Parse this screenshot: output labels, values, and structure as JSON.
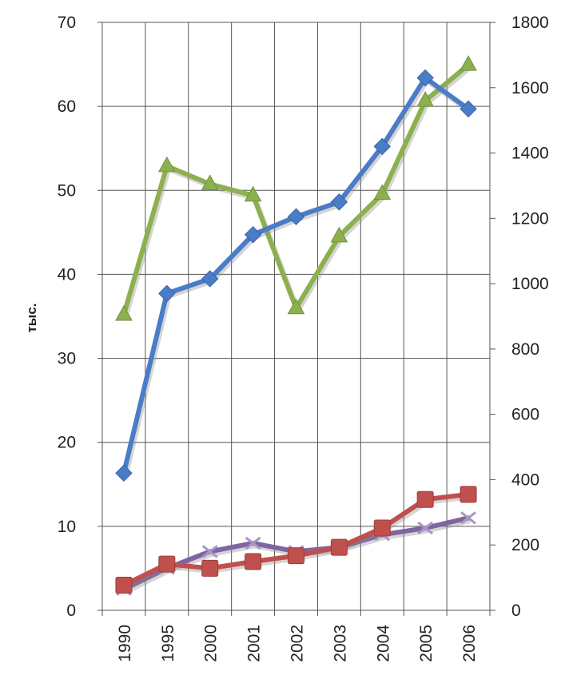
{
  "chart_data": {
    "type": "line",
    "title": "",
    "xlabel": "",
    "ylabel": "тыс.",
    "categories": [
      "1990",
      "1995",
      "2000",
      "2001",
      "2002",
      "2003",
      "2004",
      "2005",
      "2006"
    ],
    "y_left": {
      "ylim": [
        0,
        70
      ],
      "ticks": [
        "0",
        "10",
        "20",
        "30",
        "40",
        "50",
        "60",
        "70"
      ]
    },
    "y_right": {
      "ylim": [
        0,
        1800
      ],
      "ticks": [
        "0",
        "200",
        "400",
        "600",
        "800",
        "1000",
        "1200",
        "1400",
        "1600",
        "1800"
      ]
    },
    "grid": true,
    "legend": "none",
    "series": [
      {
        "axis": "right",
        "marker": "diamond",
        "color": "#4a7cc7",
        "values": [
          420,
          970,
          1015,
          1150,
          1205,
          1250,
          1420,
          1630,
          1535
        ]
      },
      {
        "axis": "right",
        "marker": "triangle",
        "color": "#8db04e",
        "values": [
          905,
          1360,
          1305,
          1270,
          925,
          1145,
          1275,
          1560,
          1670
        ]
      },
      {
        "axis": "left",
        "marker": "square",
        "color": "#c0504d",
        "values": [
          3.0,
          5.5,
          5.0,
          5.8,
          6.5,
          7.5,
          9.8,
          13.2,
          13.8
        ]
      },
      {
        "axis": "left",
        "marker": "x",
        "color": "#8064a2",
        "values": [
          2.5,
          5.0,
          7.0,
          8.0,
          7.0,
          7.5,
          9.0,
          9.8,
          11.0
        ]
      }
    ]
  }
}
